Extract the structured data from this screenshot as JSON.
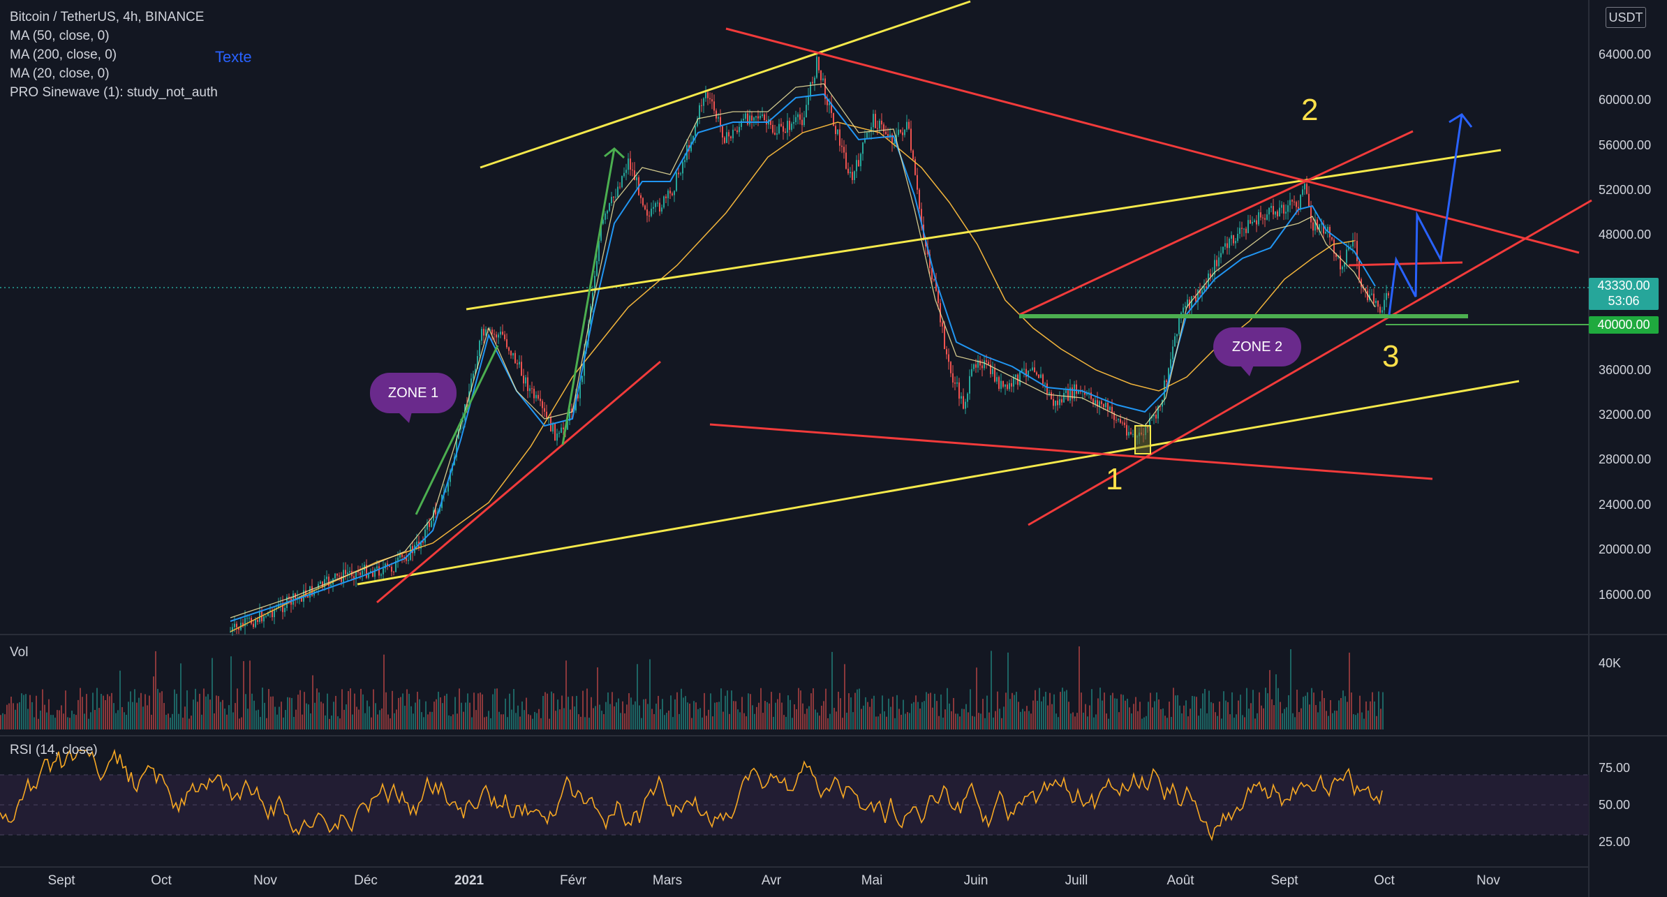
{
  "legend": {
    "symbol": "Bitcoin / TetherUS, 4h, BINANCE",
    "indicators": [
      "MA (50, close, 0)",
      "MA (200, close, 0)",
      "MA (20, close, 0)",
      "PRO Sinewave (1): study_not_auth"
    ],
    "text_tool": "Texte"
  },
  "price_axis": {
    "currency_button": "USDT",
    "labels": [
      "64000.00",
      "60000.00",
      "56000.00",
      "52000.00",
      "48000.00",
      "40000.00",
      "36000.00",
      "32000.00",
      "28000.00",
      "24000.00",
      "20000.00",
      "16000.00"
    ],
    "current_price": "43330.00",
    "countdown": "53:06",
    "level_tag": "40000.00"
  },
  "time_axis": {
    "labels": [
      "Sept",
      "Oct",
      "Nov",
      "Déc",
      "2021",
      "Févr",
      "Mars",
      "Avr",
      "Mai",
      "Juin",
      "Juill",
      "Août",
      "Sept",
      "Oct",
      "Nov"
    ]
  },
  "volume_pane": {
    "title": "Vol",
    "axis_label": "40K"
  },
  "rsi_pane": {
    "title": "RSI (14, close)",
    "axis_labels": [
      "75.00",
      "50.00",
      "25.00"
    ]
  },
  "annotations": {
    "zone1": "ZONE 1",
    "zone2": "ZONE 2",
    "num1": "1",
    "num2": "2",
    "num3": "3"
  },
  "colors": {
    "background": "#131722",
    "up": "#26a69a",
    "down": "#ef5350",
    "yellow_line": "#f5e94b",
    "red_line": "#f23b3b",
    "green_line": "#4caf50",
    "blue_line": "#2962ff",
    "ma_blue": "#2196f3",
    "ma_orange": "#f2b53c",
    "rsi_line": "#f7a823",
    "rsi_band": "#2a2540",
    "price_tag": "#26a69a",
    "level_tag": "#1faa3e",
    "zone_bubble": "#6a2a8c"
  }
}
